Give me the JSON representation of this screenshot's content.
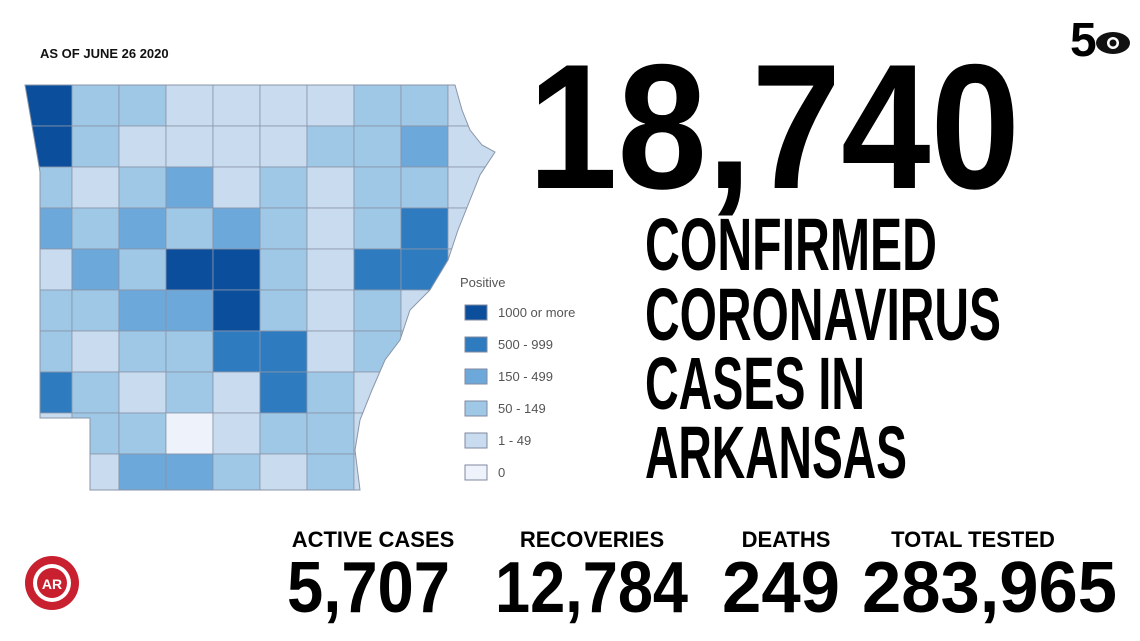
{
  "as_of": "AS OF JUNE 26 2020",
  "total_cases": "18,740",
  "headline": [
    "CONFIRMED",
    "CORONAVIRUS",
    "CASES IN",
    "ARKANSAS"
  ],
  "logo_text": "5",
  "seal_text": "AR",
  "legend": {
    "title": "Positive",
    "items": [
      {
        "label": "1000 or more",
        "color": "#0b4e9c"
      },
      {
        "label": "500 - 999",
        "color": "#2f7bbf"
      },
      {
        "label": "150 - 499",
        "color": "#6ca8d9"
      },
      {
        "label": "50 - 149",
        "color": "#9fc7e6"
      },
      {
        "label": "1 - 49",
        "color": "#c9dbef"
      },
      {
        "label": "0",
        "color": "#eef3fb"
      }
    ]
  },
  "stats": [
    {
      "label": "ACTIVE CASES",
      "value": "5,707"
    },
    {
      "label": "RECOVERIES",
      "value": "12,784"
    },
    {
      "label": "DEATHS",
      "value": "249"
    },
    {
      "label": "TOTAL TESTED",
      "value": "283,965"
    }
  ]
}
